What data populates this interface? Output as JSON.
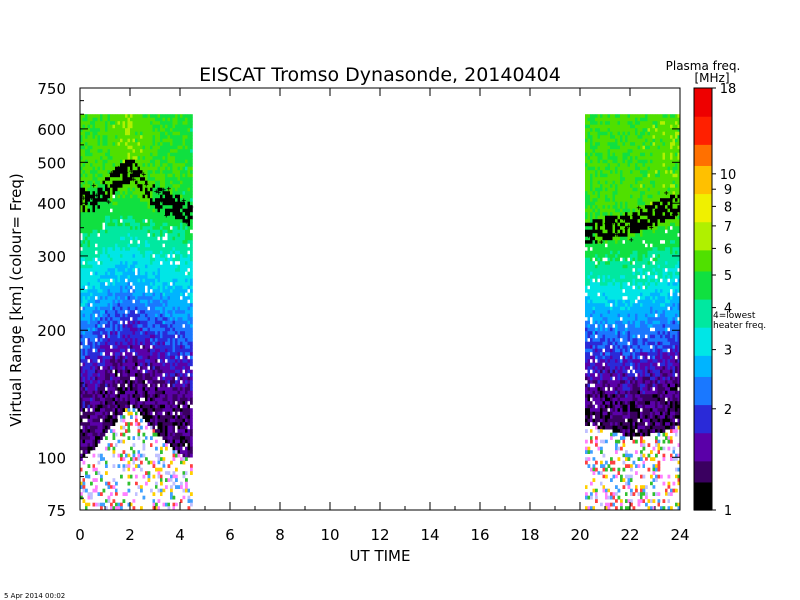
{
  "footer": {
    "timestamp": "5 Apr 2014 00:02"
  },
  "chart_data": {
    "type": "heatmap",
    "title": "EISCAT Tromso Dynasonde,  20140404",
    "xlabel": "UT TIME",
    "ylabel": "Virtual Range [km]    (colour= Freq)",
    "x_ticks": [
      0,
      2,
      4,
      6,
      8,
      10,
      12,
      14,
      16,
      18,
      20,
      22,
      24
    ],
    "xlim": [
      0,
      24
    ],
    "y_scale": "log",
    "ylim": [
      75,
      750
    ],
    "y_ticks": [
      75,
      100,
      200,
      300,
      400,
      500,
      600,
      750
    ],
    "grid": false,
    "data_intervals_ut": [
      [
        0,
        4.5
      ],
      [
        20.2,
        24
      ]
    ],
    "colorbar": {
      "title": "Plasma freq.",
      "unit": "[MHz]",
      "scale": "log",
      "range": [
        1,
        18
      ],
      "ticks": [
        1,
        2,
        3,
        4,
        5,
        6,
        7,
        8,
        9,
        10,
        18
      ],
      "annotation": "4=lowest heater freq.",
      "annotation_line1": "4=lowest",
      "annotation_line2": "heater freq.",
      "colors": [
        "#000000",
        "#3a0060",
        "#5a00a8",
        "#2a2ad8",
        "#1a78ff",
        "#00b4ff",
        "#00e6e6",
        "#00e8a0",
        "#10e040",
        "#50e000",
        "#b0f000",
        "#f0f000",
        "#ffc000",
        "#ff7000",
        "#ff2000",
        "#ee0000"
      ]
    },
    "ionogram_profile": {
      "ut": [
        0.0,
        0.5,
        1.0,
        1.5,
        2.0,
        2.5,
        3.0,
        3.5,
        4.0,
        4.5,
        20.2,
        21.0,
        22.0,
        23.0,
        24.0
      ],
      "f_layer_peak_km": [
        400,
        390,
        420,
        450,
        470,
        430,
        400,
        390,
        380,
        360,
        330,
        340,
        350,
        370,
        390
      ],
      "lowest_echo_km": [
        100,
        105,
        115,
        125,
        135,
        125,
        115,
        108,
        102,
        100,
        120,
        118,
        112,
        115,
        120
      ],
      "top_freq_mhz": [
        5.2,
        5.0,
        5.1,
        5.5,
        5.8,
        5.3,
        5.0,
        4.8,
        4.7,
        4.6,
        5.0,
        5.2,
        5.3,
        5.4,
        5.5
      ]
    }
  }
}
